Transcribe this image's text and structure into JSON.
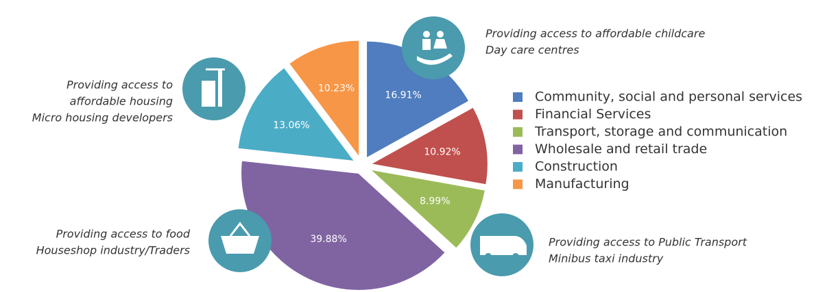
{
  "chart_data": {
    "type": "pie",
    "categories": [
      "Community, social and personal services",
      "Financial Services",
      "Transport, storage and communication",
      "Wholesale  and retail trade",
      "Construction",
      "Manufacturing"
    ],
    "values": [
      16.91,
      10.92,
      8.99,
      39.88,
      13.06,
      10.23
    ],
    "value_labels": [
      "16.91%",
      "10.92%",
      "8.99%",
      "39.88%",
      "13.06%",
      "10.23%"
    ],
    "colors": [
      "#4f7dbf",
      "#c0504d",
      "#9bbb59",
      "#8064a2",
      "#4bacc6",
      "#f79646"
    ],
    "legend": "right",
    "annotations": [
      [
        "Providing access to affordable childcare",
        "Day care centres"
      ],
      [
        "Providing access to",
        "affordable housing",
        "Micro housing developers"
      ],
      [
        "Providing access to food",
        "Houseshop industry/Traders"
      ],
      [
        "Providing access to Public Transport",
        "Minibus taxi industry"
      ]
    ]
  }
}
